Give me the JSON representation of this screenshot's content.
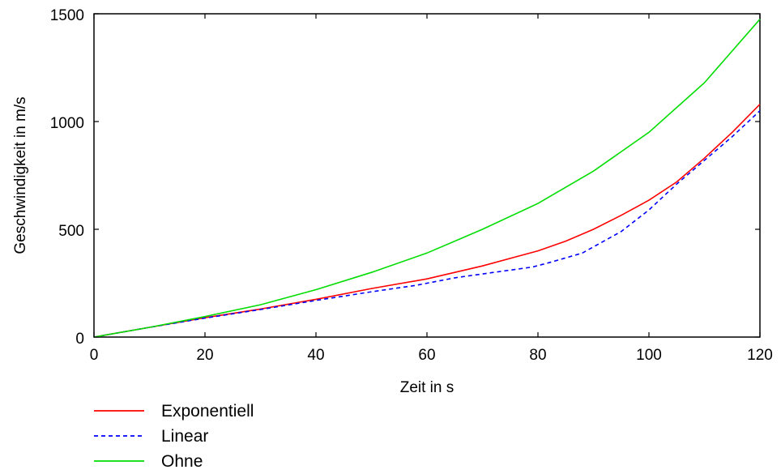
{
  "chart_data": {
    "type": "line",
    "title": "",
    "xlabel": "Zeit in s",
    "ylabel": "Geschwindigkeit in m/s",
    "xlim": [
      0,
      120
    ],
    "ylim": [
      0,
      1500
    ],
    "xticks": [
      "0",
      "20",
      "40",
      "60",
      "80",
      "100",
      "120"
    ],
    "yticks": [
      "0",
      "500",
      "1000",
      "1500"
    ],
    "grid": false,
    "legend_position": "bottom-left",
    "series": [
      {
        "name": "Exponentiell",
        "color": "#ff0000",
        "dash": "solid",
        "x": [
          0,
          10,
          20,
          30,
          40,
          50,
          60,
          70,
          80,
          85,
          90,
          95,
          100,
          105,
          110,
          115,
          120
        ],
        "y": [
          0,
          45,
          90,
          130,
          175,
          225,
          270,
          330,
          400,
          445,
          500,
          565,
          635,
          720,
          830,
          950,
          1080
        ]
      },
      {
        "name": "Linear",
        "color": "#0000ff",
        "dash": "dashed",
        "x": [
          0,
          10,
          20,
          30,
          40,
          50,
          58,
          65,
          72,
          79,
          82,
          88,
          95,
          100,
          105,
          110,
          115,
          120
        ],
        "y": [
          0,
          45,
          88,
          128,
          170,
          210,
          240,
          275,
          300,
          325,
          345,
          390,
          490,
          590,
          710,
          820,
          930,
          1050
        ]
      },
      {
        "name": "Ohne",
        "color": "#00dd00",
        "dash": "solid",
        "x": [
          0,
          10,
          20,
          30,
          40,
          50,
          60,
          70,
          80,
          90,
          100,
          110,
          120
        ],
        "y": [
          0,
          45,
          95,
          150,
          220,
          300,
          390,
          500,
          620,
          770,
          950,
          1180,
          1475
        ]
      }
    ]
  }
}
